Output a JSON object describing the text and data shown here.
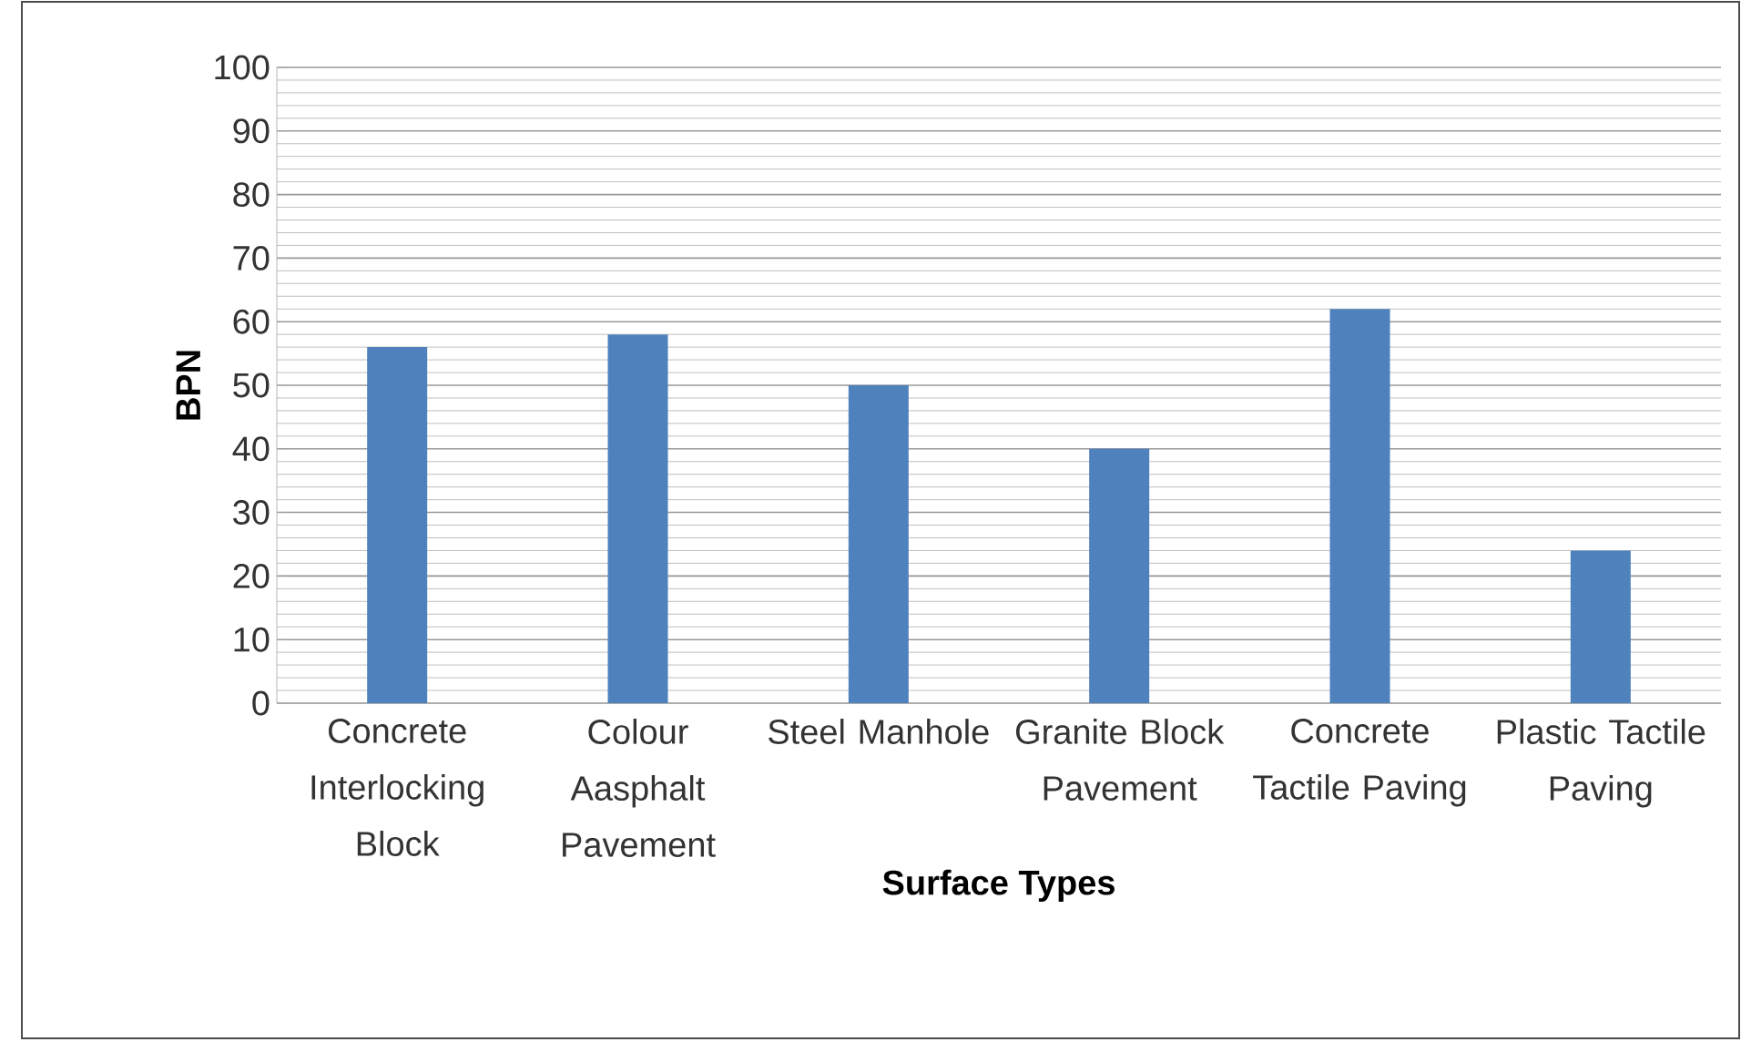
{
  "chart_data": {
    "type": "bar",
    "xlabel": "Surface Types",
    "ylabel": "BPN",
    "categories": [
      "Concrete Interlocking Block",
      "Colour Aasphalt Pavement",
      "Steel Manhole",
      "Granite Block Pavement",
      "Concrete Tactile Paving",
      "Plastic Tactile Paving"
    ],
    "values": [
      56,
      58,
      50,
      40,
      62,
      24
    ],
    "color": "#4f81bd",
    "ylim": [
      0,
      100
    ],
    "yticks": [
      0,
      10,
      20,
      30,
      40,
      50,
      60,
      70,
      80,
      90,
      100
    ],
    "grid": "y"
  }
}
